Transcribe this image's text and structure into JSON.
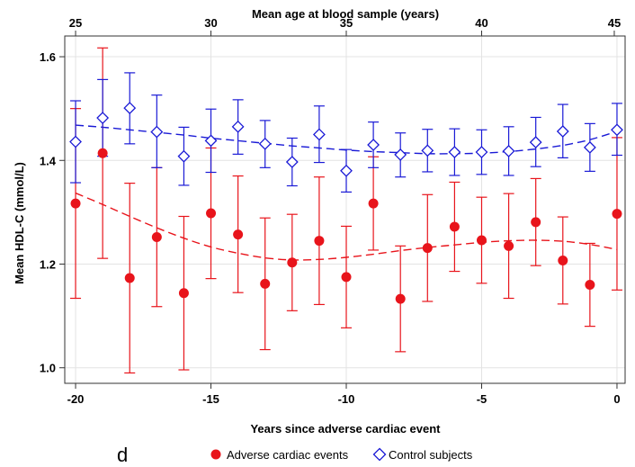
{
  "chart_data": {
    "type": "scatter",
    "panel_label": "d",
    "xlabel": "Years since adverse cardiac event",
    "ylabel": "Mean HDL-C (mmol/L)",
    "xlim": [
      -20.4,
      0.3
    ],
    "ylim": [
      0.97,
      1.64
    ],
    "x_ticks": [
      -20,
      -15,
      -10,
      -5,
      0
    ],
    "x_tick_labels": [
      "-20",
      "-15",
      "-10",
      "-5",
      "0"
    ],
    "y_ticks": [
      1.0,
      1.2,
      1.4,
      1.6
    ],
    "y_tick_labels": [
      "1.0",
      "1.2",
      "1.4",
      "1.6"
    ],
    "top_axis": {
      "label": "Mean age at blood sample (years)",
      "ticks": [
        25,
        30,
        35,
        40,
        45
      ],
      "tick_labels": [
        "25",
        "30",
        "35",
        "40",
        "45"
      ],
      "tick_x_positions": [
        -20,
        -15,
        -10,
        -5,
        -0.1
      ]
    },
    "grid": true,
    "legend_position": "bottom",
    "legend": [
      {
        "label": "Adverse cardiac events",
        "marker": "filled-circle",
        "color": "#e8141b"
      },
      {
        "label": "Control subjects",
        "marker": "open-diamond",
        "color": "#1a1ad6"
      }
    ],
    "series": [
      {
        "name": "Adverse cardiac events",
        "color": "#e8141b",
        "x": [
          -20,
          -19,
          -18,
          -17,
          -16,
          -15,
          -14,
          -13,
          -12,
          -11,
          -10,
          -9,
          -8,
          -7,
          -6,
          -5,
          -4,
          -3,
          -2,
          -1,
          0
        ],
        "values": [
          1.317,
          1.414,
          1.173,
          1.252,
          1.144,
          1.298,
          1.257,
          1.162,
          1.203,
          1.245,
          1.175,
          1.317,
          1.133,
          1.231,
          1.272,
          1.246,
          1.235,
          1.281,
          1.207,
          1.16,
          1.297
        ],
        "lower": [
          1.134,
          1.211,
          0.99,
          1.118,
          0.996,
          1.172,
          1.145,
          1.035,
          1.11,
          1.122,
          1.077,
          1.227,
          1.031,
          1.128,
          1.186,
          1.163,
          1.134,
          1.197,
          1.123,
          1.08,
          1.15
        ],
        "upper": [
          1.5,
          1.617,
          1.356,
          1.386,
          1.292,
          1.424,
          1.37,
          1.289,
          1.296,
          1.368,
          1.273,
          1.407,
          1.235,
          1.334,
          1.358,
          1.329,
          1.336,
          1.365,
          1.291,
          1.24,
          1.444
        ],
        "trend_x": [
          -20,
          -19,
          -18,
          -17,
          -16,
          -15,
          -14,
          -13,
          -12,
          -11,
          -10,
          -9,
          -8,
          -7,
          -6,
          -5,
          -4,
          -3,
          -2,
          -1,
          0
        ],
        "trend_y": [
          1.337,
          1.315,
          1.292,
          1.27,
          1.25,
          1.233,
          1.221,
          1.212,
          1.208,
          1.209,
          1.213,
          1.219,
          1.226,
          1.232,
          1.237,
          1.242,
          1.245,
          1.246,
          1.244,
          1.238,
          1.228
        ]
      },
      {
        "name": "Control subjects",
        "color": "#1a1ad6",
        "x": [
          -20,
          -19,
          -18,
          -17,
          -16,
          -15,
          -14,
          -13,
          -12,
          -11,
          -10,
          -9,
          -8,
          -7,
          -6,
          -5,
          -4,
          -3,
          -2,
          -1,
          0
        ],
        "values": [
          1.436,
          1.482,
          1.501,
          1.455,
          1.408,
          1.438,
          1.465,
          1.432,
          1.397,
          1.45,
          1.38,
          1.43,
          1.411,
          1.419,
          1.416,
          1.416,
          1.418,
          1.435,
          1.456,
          1.425,
          1.459
        ],
        "lower": [
          1.357,
          1.408,
          1.432,
          1.386,
          1.352,
          1.377,
          1.412,
          1.386,
          1.351,
          1.396,
          1.339,
          1.386,
          1.368,
          1.378,
          1.371,
          1.373,
          1.371,
          1.388,
          1.405,
          1.379,
          1.41
        ],
        "upper": [
          1.515,
          1.556,
          1.569,
          1.526,
          1.464,
          1.499,
          1.517,
          1.477,
          1.443,
          1.505,
          1.421,
          1.474,
          1.453,
          1.46,
          1.461,
          1.459,
          1.465,
          1.483,
          1.508,
          1.471,
          1.51
        ],
        "trend_x": [
          -20,
          -19,
          -18,
          -17,
          -16,
          -15,
          -14,
          -13,
          -12,
          -11,
          -10,
          -9,
          -8,
          -7,
          -6,
          -5,
          -4,
          -3,
          -2,
          -1,
          0
        ],
        "trend_y": [
          1.468,
          1.464,
          1.459,
          1.454,
          1.449,
          1.443,
          1.438,
          1.433,
          1.428,
          1.424,
          1.42,
          1.417,
          1.415,
          1.413,
          1.413,
          1.414,
          1.417,
          1.422,
          1.429,
          1.44,
          1.456
        ]
      }
    ]
  }
}
